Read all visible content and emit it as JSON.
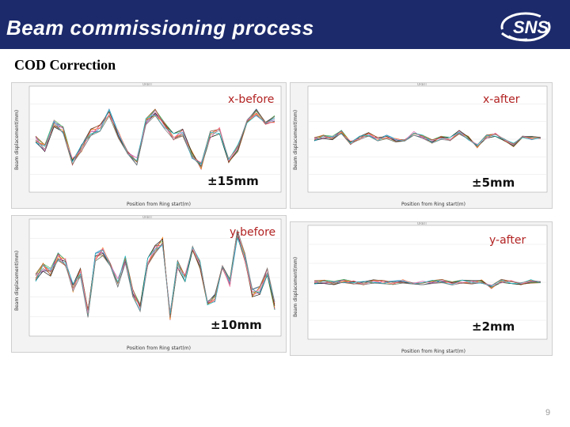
{
  "header": {
    "title": "Beam commissioning process",
    "logo_text": "SNS",
    "bg_color": "#1c2a6b"
  },
  "subtitle": "COD Correction",
  "page_number": "9",
  "panels": [
    {
      "id": "x-before",
      "label": "x-before",
      "range_text": "±15mm",
      "xlabel": "Position from Ring start(m)",
      "ylabel": "Beam displacement(mm)"
    },
    {
      "id": "x-after",
      "label": "x-after",
      "range_text": "±5mm",
      "xlabel": "Position from Ring start(m)",
      "ylabel": "Beam displacement(mm)"
    },
    {
      "id": "y-before",
      "label": "y-before",
      "range_text": "±10mm",
      "xlabel": "Position from Ring start(m)",
      "ylabel": "Beam displacement(mm)"
    },
    {
      "id": "y-after",
      "label": "y-after",
      "range_text": "±2mm",
      "xlabel": "Position from Ring start(m)",
      "ylabel": "Beam displacement(mm)"
    }
  ],
  "colors": {
    "label": "#b22222",
    "series": [
      "#e41a1c",
      "#377eb8",
      "#4daf4a",
      "#984ea3",
      "#ff7f00",
      "#222222",
      "#a65628",
      "#f781bf",
      "#17becf",
      "#7f7f7f",
      "#1f3fbf",
      "#c71585"
    ]
  }
}
